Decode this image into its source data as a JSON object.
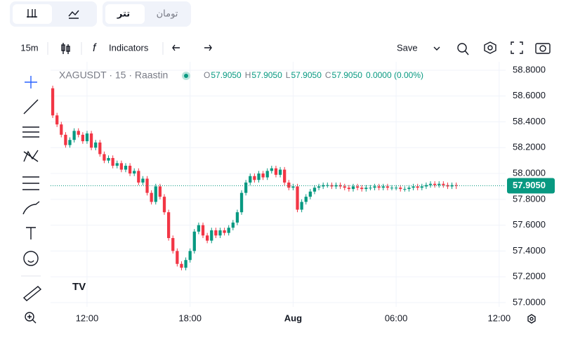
{
  "tabs": {
    "chart_types": [],
    "currency": [
      "تومان",
      "تتر"
    ]
  },
  "toolbar": {
    "interval": "15m",
    "indicators": "Indicators",
    "save": "Save"
  },
  "legend": {
    "symbol": "XAGUSDT · 15 · Raastin",
    "ohlc": [
      {
        "label": "O",
        "value": "57.9050"
      },
      {
        "label": "H",
        "value": "57.9050"
      },
      {
        "label": "L",
        "value": "57.9050"
      },
      {
        "label": "C",
        "value": "57.9050"
      }
    ],
    "change": "0.0000 (0.00%)"
  },
  "chart_data": {
    "type": "candlestick",
    "up_color": "#089981",
    "down_color": "#f23645",
    "grid": true,
    "open": [
      58.66,
      58.45,
      58.38,
      58.3,
      58.22,
      58.26,
      58.33,
      58.3,
      58.25,
      58.31,
      58.2,
      58.24,
      58.15,
      58.1,
      58.12,
      58.06,
      58.08,
      58.03,
      58.06,
      58.0,
      58.02,
      57.93,
      57.96,
      57.85,
      57.78,
      57.9,
      57.82,
      57.7,
      57.5,
      57.4,
      57.3,
      57.27,
      57.33,
      57.4,
      57.55,
      57.6,
      57.52,
      57.48,
      57.56,
      57.52,
      57.56,
      57.54,
      57.58,
      57.62,
      57.7,
      57.85,
      57.93,
      57.98,
      57.95,
      58.0,
      57.97,
      58.02,
      58.04,
      57.99,
      58.03,
      57.93,
      57.89,
      57.9,
      57.72,
      57.78,
      57.82,
      57.86,
      57.89,
      57.9,
      57.91,
      57.91,
      57.9,
      57.91,
      57.9,
      57.89,
      57.88,
      57.9,
      57.89,
      57.88,
      57.89,
      57.89,
      57.9,
      57.89,
      57.9,
      57.89,
      57.89,
      57.89,
      57.88,
      57.88,
      57.89,
      57.9,
      57.89,
      57.9,
      57.91,
      57.92,
      57.91,
      57.92,
      57.91,
      57.9,
      57.91
    ],
    "high": [
      58.68,
      58.47,
      58.4,
      58.32,
      58.28,
      58.35,
      58.35,
      58.32,
      58.33,
      58.33,
      58.26,
      58.26,
      58.17,
      58.14,
      58.14,
      58.1,
      58.1,
      58.08,
      58.08,
      58.04,
      58.04,
      57.98,
      57.98,
      57.87,
      57.92,
      57.92,
      57.84,
      57.72,
      57.52,
      57.42,
      57.32,
      57.35,
      57.42,
      57.57,
      57.62,
      57.62,
      57.54,
      57.58,
      57.58,
      57.58,
      57.58,
      57.6,
      57.64,
      57.72,
      57.87,
      57.95,
      58.0,
      58.0,
      58.02,
      58.02,
      58.04,
      58.06,
      58.06,
      58.05,
      58.05,
      57.95,
      57.92,
      57.92,
      57.8,
      57.84,
      57.88,
      57.91,
      57.92,
      57.93,
      57.93,
      57.93,
      57.93,
      57.93,
      57.92,
      57.91,
      57.92,
      57.92,
      57.91,
      57.91,
      57.91,
      57.92,
      57.92,
      57.92,
      57.92,
      57.91,
      57.91,
      57.91,
      57.9,
      57.91,
      57.92,
      57.92,
      57.92,
      57.93,
      57.94,
      57.94,
      57.94,
      57.94,
      57.93,
      57.93,
      57.93
    ],
    "low": [
      58.43,
      58.36,
      58.28,
      58.2,
      58.2,
      58.24,
      58.28,
      58.23,
      58.23,
      58.18,
      58.18,
      58.13,
      58.08,
      58.08,
      58.04,
      58.04,
      58.01,
      58.01,
      57.98,
      57.98,
      57.91,
      57.91,
      57.83,
      57.76,
      57.76,
      57.8,
      57.68,
      57.48,
      57.38,
      57.28,
      57.25,
      57.25,
      57.31,
      57.38,
      57.53,
      57.5,
      57.46,
      57.46,
      57.5,
      57.5,
      57.52,
      57.52,
      57.56,
      57.6,
      57.68,
      57.83,
      57.91,
      57.93,
      57.93,
      57.95,
      57.95,
      58.0,
      57.97,
      57.97,
      57.91,
      57.87,
      57.87,
      57.7,
      57.7,
      57.76,
      57.8,
      57.84,
      57.87,
      57.88,
      57.89,
      57.88,
      57.88,
      57.88,
      57.87,
      57.86,
      57.86,
      57.87,
      57.86,
      57.86,
      57.87,
      57.87,
      57.87,
      57.87,
      57.87,
      57.87,
      57.87,
      57.86,
      57.86,
      57.86,
      57.87,
      57.87,
      57.87,
      57.88,
      57.89,
      57.89,
      57.89,
      57.89,
      57.88,
      57.88,
      57.88
    ],
    "close": [
      58.45,
      58.38,
      58.3,
      58.22,
      58.26,
      58.33,
      58.3,
      58.25,
      58.31,
      58.2,
      58.24,
      58.15,
      58.1,
      58.12,
      58.06,
      58.08,
      58.03,
      58.06,
      58.0,
      58.02,
      57.93,
      57.96,
      57.85,
      57.78,
      57.9,
      57.82,
      57.7,
      57.5,
      57.4,
      57.3,
      57.27,
      57.33,
      57.4,
      57.55,
      57.6,
      57.52,
      57.48,
      57.56,
      57.52,
      57.56,
      57.54,
      57.58,
      57.62,
      57.7,
      57.85,
      57.93,
      57.98,
      57.95,
      58.0,
      57.97,
      58.02,
      58.04,
      57.99,
      58.03,
      57.93,
      57.89,
      57.9,
      57.72,
      57.78,
      57.82,
      57.86,
      57.89,
      57.9,
      57.91,
      57.91,
      57.9,
      57.91,
      57.9,
      57.89,
      57.88,
      57.9,
      57.89,
      57.88,
      57.89,
      57.89,
      57.9,
      57.89,
      57.9,
      57.89,
      57.89,
      57.89,
      57.88,
      57.88,
      57.89,
      57.9,
      57.89,
      57.9,
      57.91,
      57.92,
      57.91,
      57.92,
      57.91,
      57.9,
      57.91,
      57.905
    ],
    "xlim": [
      -0.5,
      105.5
    ],
    "xticks": [
      {
        "value": 8,
        "label": "12:00"
      },
      {
        "value": 32,
        "label": "18:00"
      },
      {
        "value": 56,
        "label": "Aug"
      },
      {
        "value": 80,
        "label": "06:00"
      },
      {
        "value": 104,
        "label": "12:00"
      }
    ],
    "ylim": [
      56.967,
      58.865
    ],
    "yticks": [
      {
        "value": 57.0,
        "label": "57.0000"
      },
      {
        "value": 57.2,
        "label": "57.2000"
      },
      {
        "value": 57.4,
        "label": "57.4000"
      },
      {
        "value": 57.6,
        "label": "57.6000"
      },
      {
        "value": 57.8,
        "label": "57.8000"
      },
      {
        "value": 58.0,
        "label": "58.0000"
      },
      {
        "value": 58.2,
        "label": "58.2000"
      },
      {
        "value": 58.4,
        "label": "58.4000"
      },
      {
        "value": 58.6,
        "label": "58.6000"
      },
      {
        "value": 58.8,
        "label": "58.8000"
      }
    ],
    "last_price": {
      "value": 57.905,
      "label": "57.9050"
    }
  }
}
